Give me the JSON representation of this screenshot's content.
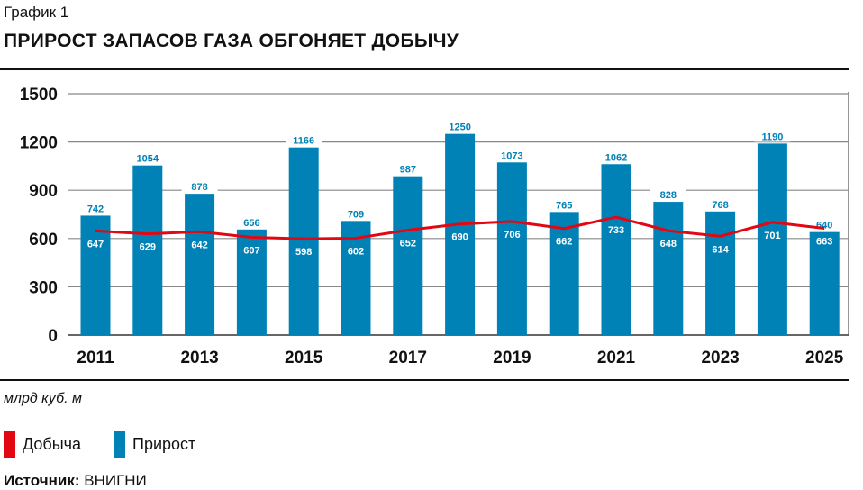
{
  "header": {
    "subtitle": "График 1",
    "title": "ПРИРОСТ ЗАПАСОВ ГАЗА ОБГОНЯЕТ ДОБЫЧУ"
  },
  "unit": "млрд куб. м",
  "legend": [
    {
      "label": "Добыча",
      "color": "#e30613"
    },
    {
      "label": "Прирост",
      "color": "#0082b6"
    }
  ],
  "source": {
    "label": "Источник:",
    "value": "ВНИГНИ"
  },
  "chart_data": {
    "type": "bar",
    "title": "ПРИРОСТ ЗАПАСОВ ГАЗА ОБГОНЯЕТ ДОБЫЧУ",
    "ylabel": "млрд куб. м",
    "ylim": [
      0,
      1500
    ],
    "yticks": [
      0,
      300,
      600,
      900,
      1200,
      1500
    ],
    "categories": [
      2011,
      2012,
      2013,
      2014,
      2015,
      2016,
      2017,
      2018,
      2019,
      2020,
      2021,
      2022,
      2023,
      2024,
      2025
    ],
    "xtick_labels": [
      "2011",
      "2013",
      "2015",
      "2017",
      "2019",
      "2021",
      "2023",
      "2025"
    ],
    "series": [
      {
        "name": "Прирост",
        "type": "bar",
        "color": "#0082b6",
        "values": [
          742,
          1054,
          878,
          656,
          1166,
          709,
          987,
          1250,
          1073,
          765,
          1062,
          828,
          768,
          1190,
          640
        ]
      },
      {
        "name": "Добыча",
        "type": "line",
        "color": "#e30613",
        "values": [
          647,
          629,
          642,
          607,
          598,
          602,
          652,
          690,
          706,
          662,
          733,
          648,
          614,
          701,
          663
        ]
      }
    ]
  }
}
